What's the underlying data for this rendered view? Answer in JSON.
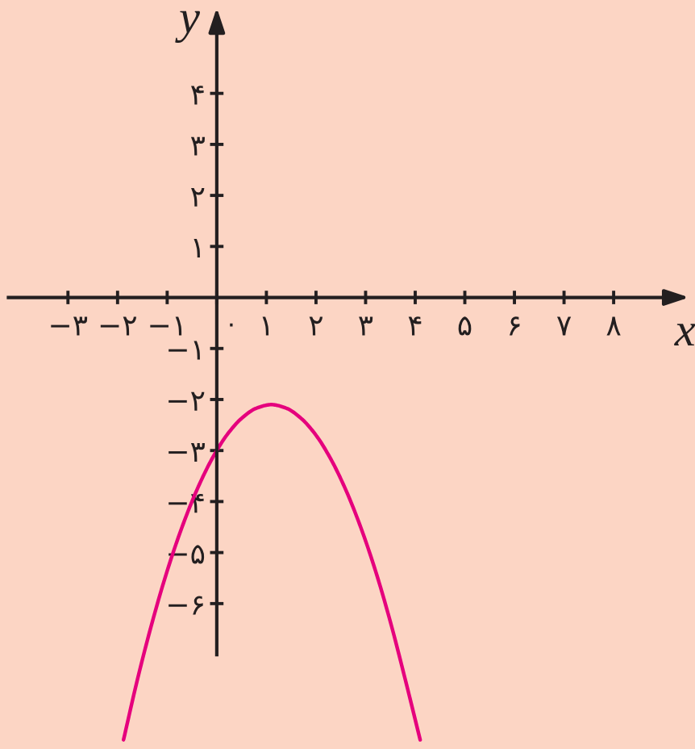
{
  "chart_data": {
    "type": "line",
    "xlabel": "x",
    "ylabel": "y",
    "x": [
      -1.88,
      -1.6,
      -1.3,
      -1.0,
      -0.7,
      -0.4,
      -0.1,
      0.2,
      0.5,
      0.8,
      1.1,
      1.4,
      1.7,
      2.0,
      2.3,
      2.6,
      2.9,
      3.2,
      3.5,
      3.8,
      4.1
    ],
    "series": [
      {
        "color": "#e5007d",
        "values": [
          -8.67,
          -7.49,
          -6.36,
          -5.36,
          -4.5,
          -3.77,
          -3.17,
          -2.7,
          -2.37,
          -2.17,
          -2.1,
          -2.17,
          -2.37,
          -2.7,
          -3.17,
          -3.77,
          -4.5,
          -5.36,
          -6.36,
          -7.49,
          -8.67
        ]
      }
    ],
    "xlim": [
      -4.37,
      9.64
    ],
    "ylim": [
      -8.85,
      5.83
    ],
    "xticks": [
      {
        "value": -3,
        "label": "−۳"
      },
      {
        "value": -2,
        "label": "−۲"
      },
      {
        "value": -1,
        "label": "−۱"
      },
      {
        "value": 0,
        "label": "۰"
      },
      {
        "value": 1,
        "label": "۱"
      },
      {
        "value": 2,
        "label": "۲"
      },
      {
        "value": 3,
        "label": "۳"
      },
      {
        "value": 4,
        "label": "۴"
      },
      {
        "value": 5,
        "label": "۵"
      },
      {
        "value": 6,
        "label": "۶"
      },
      {
        "value": 7,
        "label": "۷"
      },
      {
        "value": 8,
        "label": "۸"
      }
    ],
    "yticks": [
      {
        "value": -6,
        "label": "−۶"
      },
      {
        "value": -5,
        "label": "−۵"
      },
      {
        "value": -4,
        "label": "−۴"
      },
      {
        "value": -3,
        "label": "−۳"
      },
      {
        "value": -2,
        "label": "−۲"
      },
      {
        "value": -1,
        "label": "−۱"
      },
      {
        "value": 1,
        "label": "۱"
      },
      {
        "value": 2,
        "label": "۲"
      },
      {
        "value": 3,
        "label": "۳"
      },
      {
        "value": 4,
        "label": "۴"
      }
    ],
    "grid": false,
    "marker": "none",
    "line_style": "solid"
  }
}
